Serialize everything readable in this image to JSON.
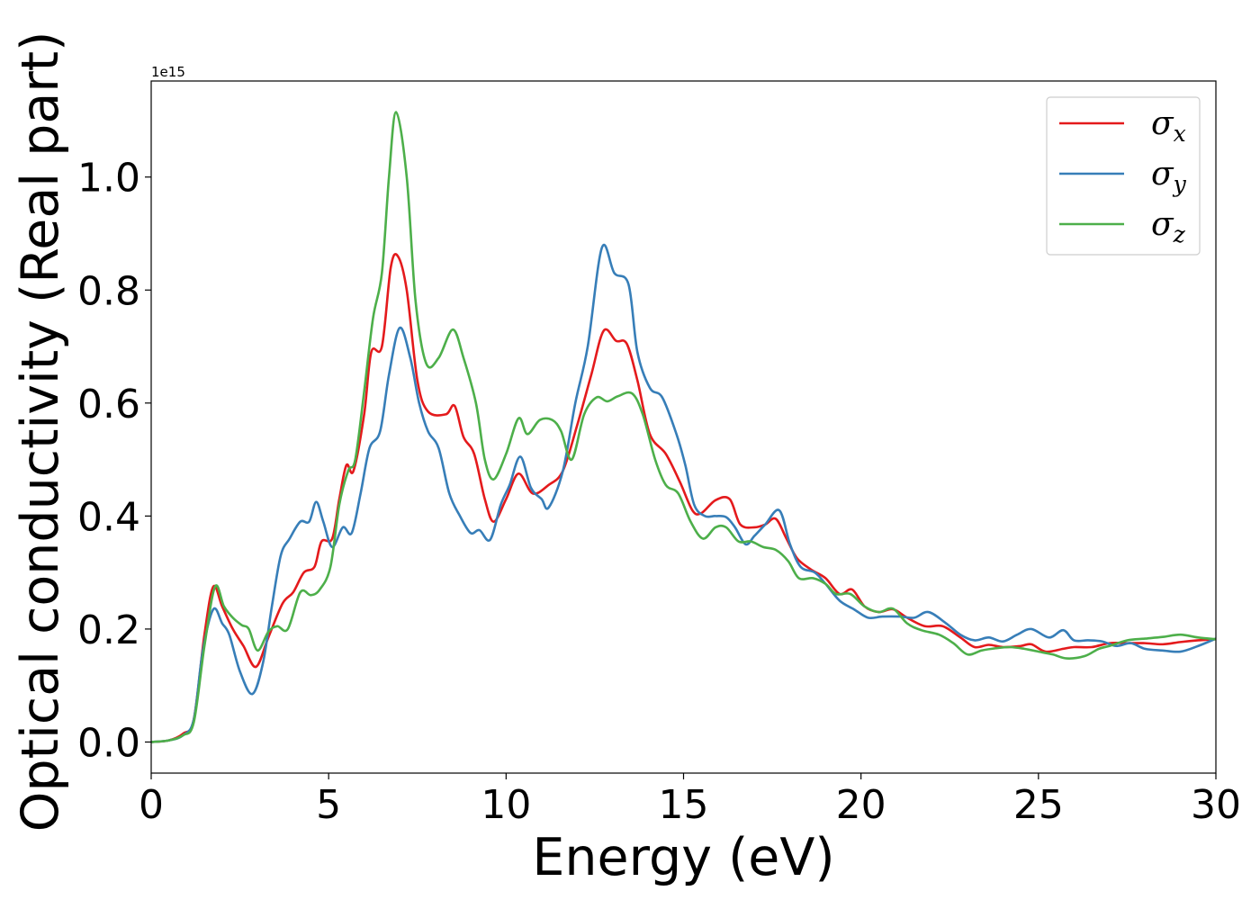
{
  "chart_data": {
    "type": "line",
    "title": "",
    "xlabel": "Energy (eV)",
    "ylabel": "Optical conductivity (Real part)",
    "y_offset_label": "1e15",
    "xlim": [
      0,
      30
    ],
    "ylim": [
      -0.055,
      1.17
    ],
    "xticks": [
      0,
      5,
      10,
      15,
      20,
      25,
      30
    ],
    "yticks": [
      0.0,
      0.2,
      0.4,
      0.6,
      0.8,
      1.0
    ],
    "xtick_labels": [
      "0",
      "5",
      "10",
      "15",
      "20",
      "25",
      "30"
    ],
    "ytick_labels": [
      "0.0",
      "0.2",
      "0.4",
      "0.6",
      "0.8",
      "1.0"
    ],
    "grid": false,
    "legend_position": "top-right",
    "legend": [
      {
        "symbol": "σ",
        "sub": "x"
      },
      {
        "symbol": "σ",
        "sub": "y"
      },
      {
        "symbol": "σ",
        "sub": "z"
      }
    ],
    "series": [
      {
        "color": "#e41a1c",
        "points": [
          [
            0,
            0
          ],
          [
            0.5,
            0.003
          ],
          [
            0.9,
            0.015
          ],
          [
            1.2,
            0.04
          ],
          [
            1.5,
            0.19
          ],
          [
            1.75,
            0.275
          ],
          [
            2.0,
            0.24
          ],
          [
            2.3,
            0.2
          ],
          [
            2.6,
            0.17
          ],
          [
            2.95,
            0.133
          ],
          [
            3.3,
            0.185
          ],
          [
            3.7,
            0.245
          ],
          [
            4.0,
            0.265
          ],
          [
            4.3,
            0.3
          ],
          [
            4.6,
            0.31
          ],
          [
            4.8,
            0.355
          ],
          [
            5.1,
            0.36
          ],
          [
            5.3,
            0.43
          ],
          [
            5.5,
            0.49
          ],
          [
            5.7,
            0.48
          ],
          [
            6.0,
            0.58
          ],
          [
            6.2,
            0.69
          ],
          [
            6.5,
            0.7
          ],
          [
            6.75,
            0.84
          ],
          [
            6.95,
            0.86
          ],
          [
            7.2,
            0.8
          ],
          [
            7.5,
            0.64
          ],
          [
            7.8,
            0.585
          ],
          [
            8.3,
            0.58
          ],
          [
            8.55,
            0.595
          ],
          [
            8.8,
            0.54
          ],
          [
            9.1,
            0.51
          ],
          [
            9.4,
            0.43
          ],
          [
            9.65,
            0.39
          ],
          [
            10.0,
            0.43
          ],
          [
            10.35,
            0.475
          ],
          [
            10.75,
            0.44
          ],
          [
            11.2,
            0.455
          ],
          [
            11.6,
            0.48
          ],
          [
            12.0,
            0.56
          ],
          [
            12.4,
            0.65
          ],
          [
            12.75,
            0.728
          ],
          [
            13.1,
            0.71
          ],
          [
            13.4,
            0.705
          ],
          [
            13.7,
            0.64
          ],
          [
            14.05,
            0.545
          ],
          [
            14.5,
            0.51
          ],
          [
            14.9,
            0.46
          ],
          [
            15.25,
            0.41
          ],
          [
            15.5,
            0.405
          ],
          [
            15.9,
            0.428
          ],
          [
            16.3,
            0.43
          ],
          [
            16.6,
            0.385
          ],
          [
            17.0,
            0.38
          ],
          [
            17.3,
            0.385
          ],
          [
            17.6,
            0.395
          ],
          [
            17.9,
            0.36
          ],
          [
            18.2,
            0.325
          ],
          [
            18.6,
            0.305
          ],
          [
            19.0,
            0.29
          ],
          [
            19.4,
            0.262
          ],
          [
            19.75,
            0.27
          ],
          [
            20.1,
            0.24
          ],
          [
            20.5,
            0.23
          ],
          [
            20.9,
            0.235
          ],
          [
            21.3,
            0.22
          ],
          [
            21.8,
            0.205
          ],
          [
            22.3,
            0.205
          ],
          [
            22.8,
            0.185
          ],
          [
            23.2,
            0.168
          ],
          [
            23.6,
            0.172
          ],
          [
            24.0,
            0.168
          ],
          [
            24.5,
            0.17
          ],
          [
            24.8,
            0.173
          ],
          [
            25.2,
            0.16
          ],
          [
            25.7,
            0.165
          ],
          [
            26.0,
            0.168
          ],
          [
            26.5,
            0.168
          ],
          [
            27.0,
            0.175
          ],
          [
            27.5,
            0.175
          ],
          [
            28.0,
            0.175
          ],
          [
            28.5,
            0.173
          ],
          [
            29.0,
            0.177
          ],
          [
            29.5,
            0.18
          ],
          [
            30.0,
            0.182
          ]
        ]
      },
      {
        "color": "#377eb8",
        "points": [
          [
            0,
            0
          ],
          [
            0.5,
            0.003
          ],
          [
            0.9,
            0.012
          ],
          [
            1.2,
            0.04
          ],
          [
            1.45,
            0.16
          ],
          [
            1.75,
            0.235
          ],
          [
            2.0,
            0.21
          ],
          [
            2.2,
            0.19
          ],
          [
            2.5,
            0.125
          ],
          [
            2.85,
            0.085
          ],
          [
            3.15,
            0.14
          ],
          [
            3.4,
            0.24
          ],
          [
            3.65,
            0.33
          ],
          [
            3.9,
            0.36
          ],
          [
            4.2,
            0.39
          ],
          [
            4.45,
            0.39
          ],
          [
            4.65,
            0.425
          ],
          [
            4.85,
            0.39
          ],
          [
            5.1,
            0.345
          ],
          [
            5.4,
            0.38
          ],
          [
            5.65,
            0.37
          ],
          [
            5.9,
            0.44
          ],
          [
            6.15,
            0.52
          ],
          [
            6.45,
            0.55
          ],
          [
            6.7,
            0.65
          ],
          [
            7.0,
            0.733
          ],
          [
            7.3,
            0.68
          ],
          [
            7.55,
            0.6
          ],
          [
            7.8,
            0.55
          ],
          [
            8.1,
            0.52
          ],
          [
            8.4,
            0.44
          ],
          [
            8.7,
            0.4
          ],
          [
            9.0,
            0.37
          ],
          [
            9.25,
            0.375
          ],
          [
            9.55,
            0.358
          ],
          [
            9.85,
            0.42
          ],
          [
            10.1,
            0.455
          ],
          [
            10.4,
            0.505
          ],
          [
            10.7,
            0.45
          ],
          [
            11.0,
            0.43
          ],
          [
            11.2,
            0.415
          ],
          [
            11.6,
            0.48
          ],
          [
            11.95,
            0.6
          ],
          [
            12.3,
            0.7
          ],
          [
            12.7,
            0.875
          ],
          [
            13.05,
            0.83
          ],
          [
            13.45,
            0.81
          ],
          [
            13.7,
            0.69
          ],
          [
            14.05,
            0.627
          ],
          [
            14.4,
            0.61
          ],
          [
            14.8,
            0.545
          ],
          [
            15.05,
            0.49
          ],
          [
            15.3,
            0.42
          ],
          [
            15.6,
            0.4
          ],
          [
            15.9,
            0.4
          ],
          [
            16.2,
            0.398
          ],
          [
            16.45,
            0.38
          ],
          [
            16.75,
            0.35
          ],
          [
            17.0,
            0.365
          ],
          [
            17.3,
            0.385
          ],
          [
            17.7,
            0.41
          ],
          [
            18.0,
            0.35
          ],
          [
            18.3,
            0.31
          ],
          [
            18.7,
            0.3
          ],
          [
            19.0,
            0.28
          ],
          [
            19.4,
            0.25
          ],
          [
            19.8,
            0.235
          ],
          [
            20.2,
            0.22
          ],
          [
            20.6,
            0.222
          ],
          [
            21.1,
            0.222
          ],
          [
            21.5,
            0.22
          ],
          [
            21.9,
            0.23
          ],
          [
            22.4,
            0.21
          ],
          [
            22.8,
            0.19
          ],
          [
            23.2,
            0.18
          ],
          [
            23.6,
            0.185
          ],
          [
            24.0,
            0.178
          ],
          [
            24.4,
            0.19
          ],
          [
            24.8,
            0.2
          ],
          [
            25.3,
            0.185
          ],
          [
            25.7,
            0.198
          ],
          [
            26.0,
            0.18
          ],
          [
            26.4,
            0.18
          ],
          [
            26.8,
            0.178
          ],
          [
            27.2,
            0.17
          ],
          [
            27.6,
            0.175
          ],
          [
            28.0,
            0.165
          ],
          [
            28.5,
            0.162
          ],
          [
            29.0,
            0.16
          ],
          [
            29.5,
            0.17
          ],
          [
            30.0,
            0.183
          ]
        ]
      },
      {
        "color": "#4daf4a",
        "points": [
          [
            0,
            0
          ],
          [
            0.5,
            0.003
          ],
          [
            0.9,
            0.012
          ],
          [
            1.2,
            0.035
          ],
          [
            1.5,
            0.17
          ],
          [
            1.8,
            0.275
          ],
          [
            2.05,
            0.24
          ],
          [
            2.3,
            0.22
          ],
          [
            2.55,
            0.207
          ],
          [
            2.75,
            0.2
          ],
          [
            3.0,
            0.162
          ],
          [
            3.3,
            0.195
          ],
          [
            3.55,
            0.205
          ],
          [
            3.85,
            0.2
          ],
          [
            4.2,
            0.265
          ],
          [
            4.5,
            0.26
          ],
          [
            4.75,
            0.27
          ],
          [
            5.05,
            0.31
          ],
          [
            5.3,
            0.42
          ],
          [
            5.55,
            0.48
          ],
          [
            5.75,
            0.5
          ],
          [
            6.0,
            0.62
          ],
          [
            6.25,
            0.75
          ],
          [
            6.5,
            0.83
          ],
          [
            6.7,
            1.0
          ],
          [
            6.9,
            1.115
          ],
          [
            7.2,
            1.0
          ],
          [
            7.45,
            0.78
          ],
          [
            7.75,
            0.67
          ],
          [
            8.1,
            0.68
          ],
          [
            8.5,
            0.73
          ],
          [
            8.8,
            0.68
          ],
          [
            9.15,
            0.6
          ],
          [
            9.4,
            0.5
          ],
          [
            9.65,
            0.465
          ],
          [
            10.0,
            0.51
          ],
          [
            10.35,
            0.573
          ],
          [
            10.6,
            0.545
          ],
          [
            10.95,
            0.57
          ],
          [
            11.3,
            0.57
          ],
          [
            11.55,
            0.55
          ],
          [
            11.85,
            0.5
          ],
          [
            12.2,
            0.58
          ],
          [
            12.55,
            0.61
          ],
          [
            12.85,
            0.603
          ],
          [
            13.15,
            0.612
          ],
          [
            13.55,
            0.617
          ],
          [
            13.85,
            0.58
          ],
          [
            14.2,
            0.5
          ],
          [
            14.5,
            0.455
          ],
          [
            14.85,
            0.44
          ],
          [
            15.2,
            0.39
          ],
          [
            15.55,
            0.36
          ],
          [
            15.9,
            0.38
          ],
          [
            16.2,
            0.38
          ],
          [
            16.55,
            0.355
          ],
          [
            16.9,
            0.355
          ],
          [
            17.25,
            0.345
          ],
          [
            17.6,
            0.34
          ],
          [
            17.95,
            0.32
          ],
          [
            18.25,
            0.29
          ],
          [
            18.65,
            0.29
          ],
          [
            19.0,
            0.28
          ],
          [
            19.3,
            0.262
          ],
          [
            19.7,
            0.262
          ],
          [
            20.1,
            0.24
          ],
          [
            20.5,
            0.23
          ],
          [
            20.9,
            0.236
          ],
          [
            21.3,
            0.21
          ],
          [
            21.7,
            0.198
          ],
          [
            22.2,
            0.19
          ],
          [
            22.6,
            0.175
          ],
          [
            23.0,
            0.155
          ],
          [
            23.4,
            0.162
          ],
          [
            23.8,
            0.166
          ],
          [
            24.2,
            0.168
          ],
          [
            24.6,
            0.165
          ],
          [
            25.0,
            0.16
          ],
          [
            25.4,
            0.155
          ],
          [
            25.8,
            0.148
          ],
          [
            26.3,
            0.152
          ],
          [
            26.7,
            0.165
          ],
          [
            27.0,
            0.17
          ],
          [
            27.5,
            0.18
          ],
          [
            28.0,
            0.183
          ],
          [
            28.5,
            0.186
          ],
          [
            29.0,
            0.19
          ],
          [
            29.5,
            0.185
          ],
          [
            30.0,
            0.182
          ]
        ]
      }
    ]
  }
}
